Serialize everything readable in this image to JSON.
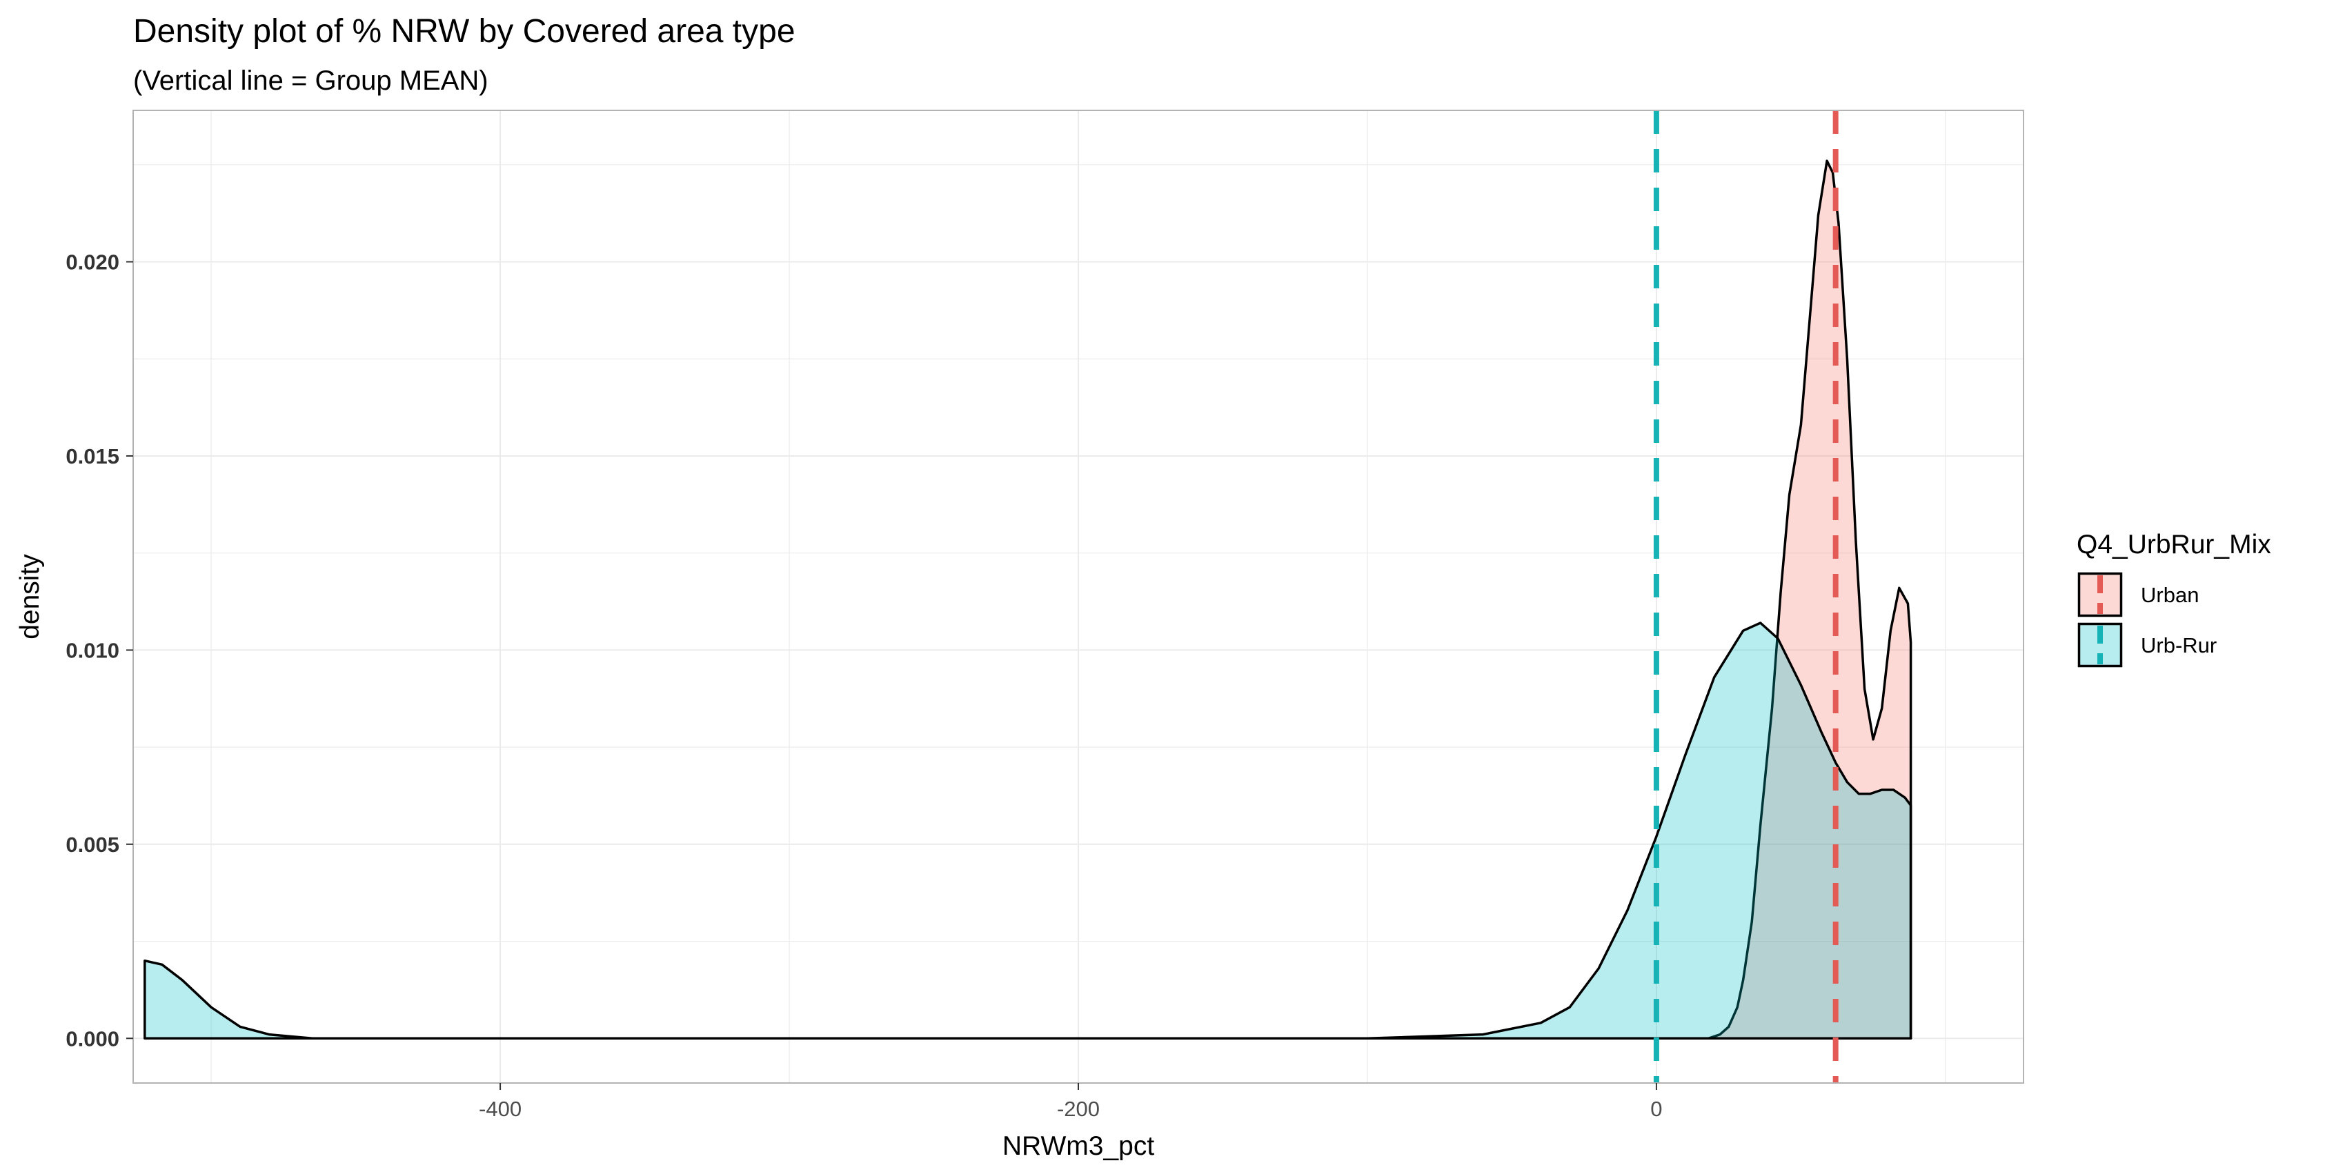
{
  "chart_data": {
    "type": "area",
    "title": "Density plot of % NRW by Covered area type",
    "subtitle": "(Vertical line = Group MEAN)",
    "xlabel": "NRWm3_pct",
    "ylabel": "density",
    "xlim": [
      -527,
      127
    ],
    "ylim": [
      -0.00115,
      0.0239
    ],
    "x_ticks": [
      -400,
      -200,
      0
    ],
    "x_tick_labels": [
      "-400",
      "-200",
      "0"
    ],
    "y_ticks": [
      0,
      0.005,
      0.01,
      0.015,
      0.02
    ],
    "y_tick_labels": [
      "0.000",
      "0.005",
      "0.010",
      "0.015",
      "0.020"
    ],
    "grid": true,
    "legend": {
      "title": "Q4_UrbRur_Mix",
      "position": "right"
    },
    "series": [
      {
        "name": "Urban",
        "fill": "#F8766D",
        "line": "#E45A55",
        "mean": 62,
        "points": [
          [
            18,
            0
          ],
          [
            22,
            0.0001
          ],
          [
            25,
            0.0003
          ],
          [
            28,
            0.0008
          ],
          [
            30,
            0.0015
          ],
          [
            33,
            0.003
          ],
          [
            36,
            0.0055
          ],
          [
            40,
            0.0085
          ],
          [
            43,
            0.0115
          ],
          [
            46,
            0.014
          ],
          [
            50,
            0.0158
          ],
          [
            53,
            0.0185
          ],
          [
            56,
            0.0212
          ],
          [
            59,
            0.0226
          ],
          [
            61,
            0.0223
          ],
          [
            63,
            0.021
          ],
          [
            66,
            0.0175
          ],
          [
            69,
            0.0128
          ],
          [
            72,
            0.009
          ],
          [
            75,
            0.0077
          ],
          [
            78,
            0.0085
          ],
          [
            81,
            0.0105
          ],
          [
            84,
            0.0116
          ],
          [
            87,
            0.0112
          ],
          [
            88,
            0.0102
          ],
          [
            88,
            0
          ]
        ]
      },
      {
        "name": "Urb-Rur",
        "fill": "#00BFC4",
        "line": "#15B3B5",
        "mean": 0,
        "points": [
          [
            -523,
            0
          ],
          [
            -523,
            0.002
          ],
          [
            -517,
            0.0019
          ],
          [
            -510,
            0.0015
          ],
          [
            -500,
            0.0008
          ],
          [
            -490,
            0.0003
          ],
          [
            -480,
            0.0001
          ],
          [
            -465,
            0
          ],
          [
            -100,
            0
          ],
          [
            -60,
            0.0001
          ],
          [
            -40,
            0.0004
          ],
          [
            -30,
            0.0008
          ],
          [
            -20,
            0.0018
          ],
          [
            -10,
            0.0033
          ],
          [
            0,
            0.0052
          ],
          [
            10,
            0.0073
          ],
          [
            20,
            0.0093
          ],
          [
            30,
            0.0105
          ],
          [
            36,
            0.0107
          ],
          [
            42,
            0.0103
          ],
          [
            50,
            0.0091
          ],
          [
            57,
            0.0079
          ],
          [
            62,
            0.0071
          ],
          [
            66,
            0.0066
          ],
          [
            70,
            0.0063
          ],
          [
            74,
            0.0063
          ],
          [
            78,
            0.0064
          ],
          [
            82,
            0.0064
          ],
          [
            86,
            0.0062
          ],
          [
            88,
            0.006
          ],
          [
            88,
            0
          ]
        ]
      }
    ]
  }
}
